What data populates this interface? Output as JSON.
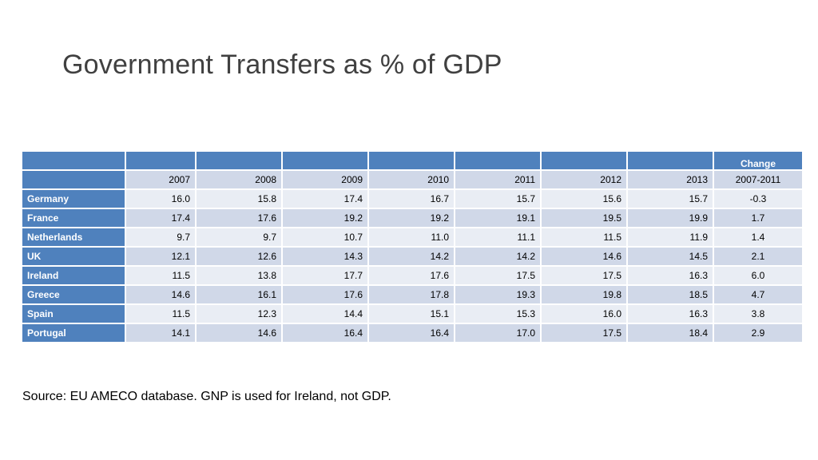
{
  "title": "Government Transfers as % of GDP",
  "header": {
    "change_label": "Change",
    "years": [
      "2007",
      "2008",
      "2009",
      "2010",
      "2011",
      "2012",
      "2013"
    ],
    "change_period": "2007-2011"
  },
  "rows": [
    {
      "country": "Germany",
      "values": [
        "16.0",
        "15.8",
        "17.4",
        "16.7",
        "15.7",
        "15.6",
        "15.7"
      ],
      "change": "-0.3"
    },
    {
      "country": "France",
      "values": [
        "17.4",
        "17.6",
        "19.2",
        "19.2",
        "19.1",
        "19.5",
        "19.9"
      ],
      "change": "1.7"
    },
    {
      "country": "Netherlands",
      "values": [
        "9.7",
        "9.7",
        "10.7",
        "11.0",
        "11.1",
        "11.5",
        "11.9"
      ],
      "change": "1.4"
    },
    {
      "country": "UK",
      "values": [
        "12.1",
        "12.6",
        "14.3",
        "14.2",
        "14.2",
        "14.6",
        "14.5"
      ],
      "change": "2.1"
    },
    {
      "country": "Ireland",
      "values": [
        "11.5",
        "13.8",
        "17.7",
        "17.6",
        "17.5",
        "17.5",
        "16.3"
      ],
      "change": "6.0"
    },
    {
      "country": "Greece",
      "values": [
        "14.6",
        "16.1",
        "17.6",
        "17.8",
        "19.3",
        "19.8",
        "18.5"
      ],
      "change": "4.7"
    },
    {
      "country": "Spain",
      "values": [
        "11.5",
        "12.3",
        "14.4",
        "15.1",
        "15.3",
        "16.0",
        "16.3"
      ],
      "change": "3.8"
    },
    {
      "country": "Portugal",
      "values": [
        "14.1",
        "14.6",
        "16.4",
        "16.4",
        "17.0",
        "17.5",
        "18.4"
      ],
      "change": "2.9"
    }
  ],
  "source": "Source: EU AMECO database. GNP is used for Ireland, not GDP.",
  "colors": {
    "header_blue": "#4f81bd",
    "row_band_dark": "#d0d8e8",
    "row_band_light": "#e9edf4",
    "title_gray": "#404040"
  }
}
